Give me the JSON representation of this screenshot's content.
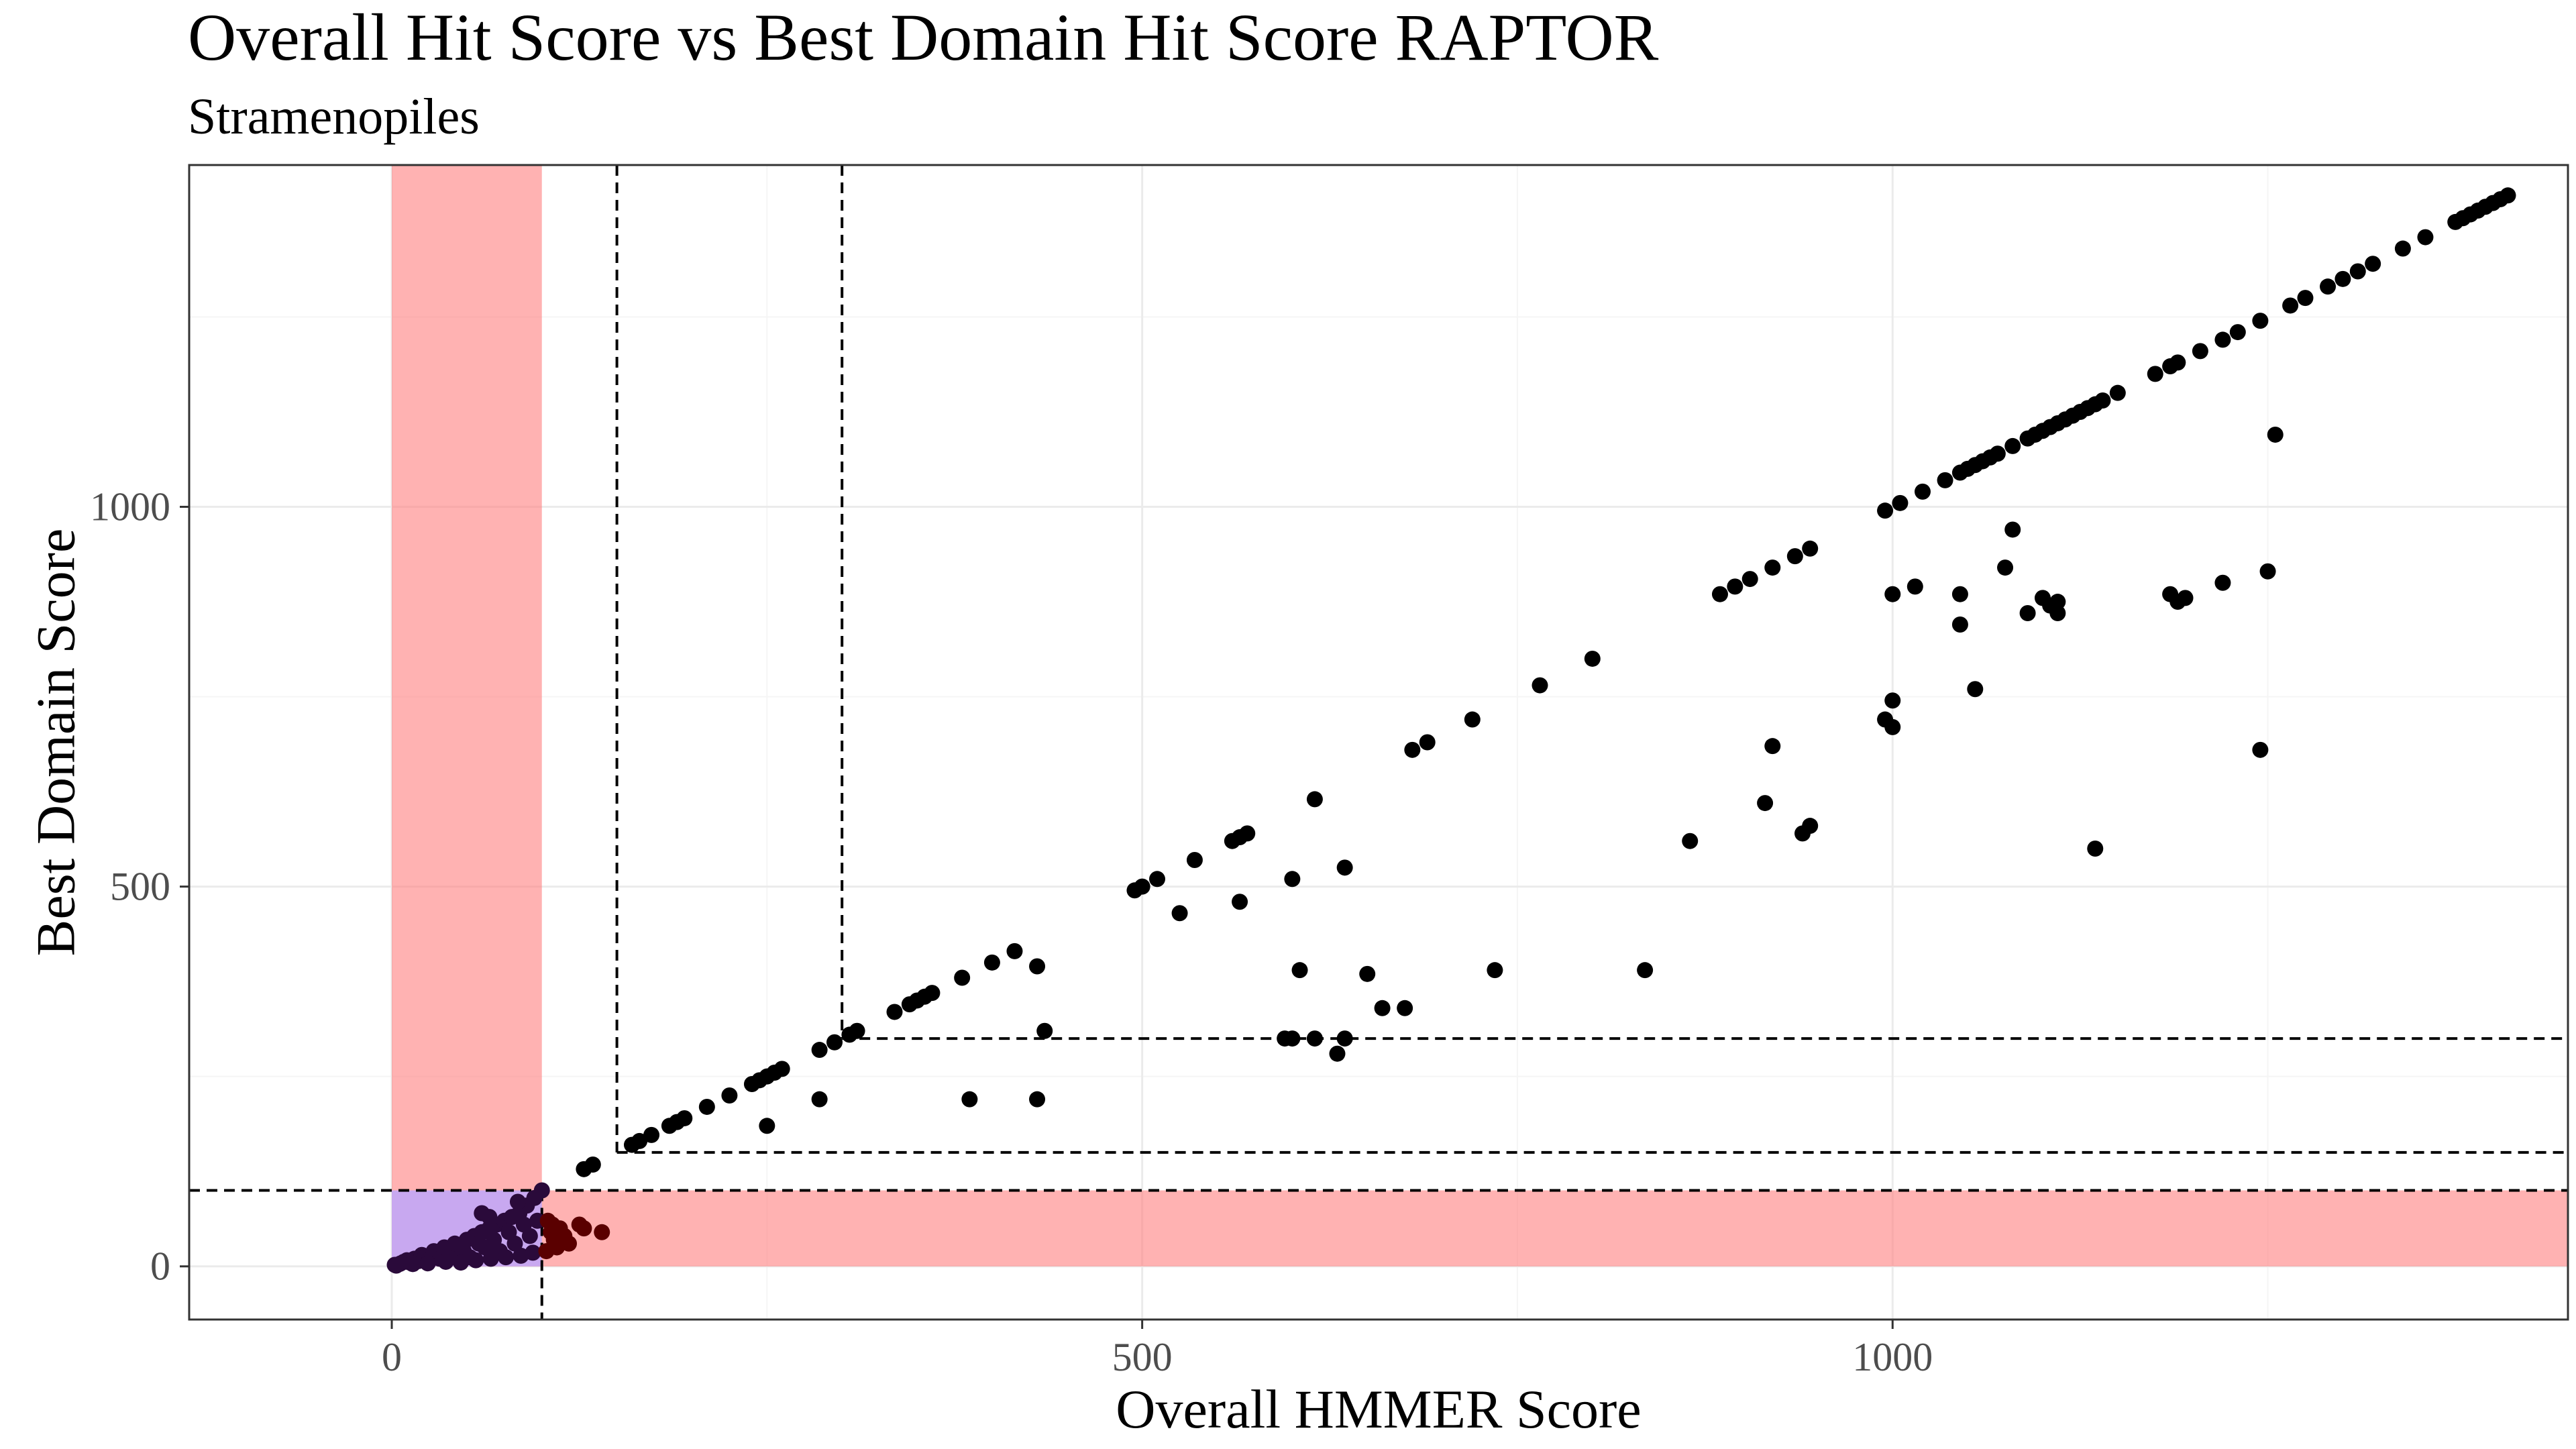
{
  "chart_data": {
    "type": "scatter",
    "title": "Overall Hit Score vs Best Domain Hit Score RAPTOR",
    "subtitle": "Stramenopiles",
    "xlabel": "Overall HMMER Score",
    "ylabel": "Best Domain Score",
    "xlim": [
      -135,
      1450
    ],
    "ylim": [
      -70,
      1450
    ],
    "x_ticks": [
      0,
      500,
      1000
    ],
    "y_ticks": [
      0,
      500,
      1000
    ],
    "grid": true,
    "colors": {
      "point": "#000000",
      "point_low": "#2a0a3a",
      "point_mid": "#5a0000",
      "shade_red": "#ff7f7f",
      "shade_purple": "#c8a8f0",
      "grid_major": "#ebebeb",
      "grid_minor": "#f5f5f5",
      "panel_border": "#333333"
    },
    "shaded_regions": [
      {
        "name": "low-overall-band",
        "x": [
          0,
          100
        ],
        "y": [
          0,
          1450
        ],
        "color": "#ff7f7f"
      },
      {
        "name": "low-domain-band",
        "x": [
          0,
          1450
        ],
        "y": [
          0,
          100
        ],
        "color": "#ff7f7f"
      },
      {
        "name": "overlap",
        "x": [
          0,
          100
        ],
        "y": [
          0,
          100
        ],
        "color": "#c8a8f0"
      }
    ],
    "threshold_lines": {
      "vertical": [
        {
          "x": 100,
          "y_from": -70,
          "y_to": 100
        },
        {
          "x": 150,
          "y_from": 150,
          "y_to": 1450
        },
        {
          "x": 300,
          "y_from": 300,
          "y_to": 1450
        }
      ],
      "horizontal": [
        {
          "y": 100,
          "x_from": -135,
          "x_to": 1450
        },
        {
          "y": 150,
          "x_from": 150,
          "x_to": 1450
        },
        {
          "y": 300,
          "x_from": 300,
          "x_to": 1450
        }
      ]
    },
    "diagonal_points_x": [
      128,
      134,
      160,
      165,
      173,
      185,
      190,
      195,
      210,
      225,
      240,
      245,
      250,
      255,
      260,
      285,
      295,
      305,
      310,
      335,
      345,
      350,
      355,
      360,
      380,
      400,
      415,
      495,
      500,
      510,
      535,
      560,
      565,
      570,
      615,
      680,
      690,
      720,
      765,
      800,
      885,
      895,
      905,
      920,
      935,
      945,
      995,
      1005,
      1020,
      1035,
      1045,
      1050,
      1055,
      1060,
      1065,
      1070,
      1080,
      1090,
      1095,
      1100,
      1105,
      1110,
      1115,
      1120,
      1125,
      1130,
      1135,
      1140,
      1150,
      1175,
      1185,
      1190,
      1205,
      1220,
      1230,
      1245,
      1265,
      1275,
      1290,
      1300,
      1310,
      1320,
      1340,
      1355,
      1375,
      1380,
      1385,
      1390,
      1395,
      1400,
      1405,
      1410
    ],
    "scatter_points": [
      [
        250,
        185
      ],
      [
        285,
        220
      ],
      [
        385,
        220
      ],
      [
        430,
        220
      ],
      [
        430,
        395
      ],
      [
        435,
        310
      ],
      [
        525,
        465
      ],
      [
        565,
        480
      ],
      [
        595,
        300
      ],
      [
        600,
        300
      ],
      [
        600,
        510
      ],
      [
        605,
        390
      ],
      [
        615,
        300
      ],
      [
        630,
        280
      ],
      [
        635,
        300
      ],
      [
        635,
        525
      ],
      [
        650,
        385
      ],
      [
        660,
        340
      ],
      [
        675,
        340
      ],
      [
        735,
        390
      ],
      [
        835,
        390
      ],
      [
        865,
        560
      ],
      [
        915,
        610
      ],
      [
        920,
        685
      ],
      [
        940,
        570
      ],
      [
        945,
        580
      ],
      [
        995,
        720
      ],
      [
        1000,
        710
      ],
      [
        1000,
        745
      ],
      [
        1000,
        885
      ],
      [
        1015,
        895
      ],
      [
        1045,
        845
      ],
      [
        1045,
        885
      ],
      [
        1055,
        760
      ],
      [
        1075,
        920
      ],
      [
        1080,
        970
      ],
      [
        1090,
        860
      ],
      [
        1100,
        880
      ],
      [
        1105,
        870
      ],
      [
        1110,
        860
      ],
      [
        1110,
        875
      ],
      [
        1135,
        550
      ],
      [
        1185,
        885
      ],
      [
        1190,
        875
      ],
      [
        1195,
        880
      ],
      [
        1220,
        900
      ],
      [
        1245,
        680
      ],
      [
        1250,
        915
      ],
      [
        1255,
        1095
      ]
    ],
    "low_cluster_dark": [
      [
        2,
        2
      ],
      [
        5,
        3
      ],
      [
        8,
        6
      ],
      [
        10,
        8
      ],
      [
        12,
        5
      ],
      [
        15,
        10
      ],
      [
        18,
        7
      ],
      [
        20,
        15
      ],
      [
        22,
        12
      ],
      [
        25,
        8
      ],
      [
        28,
        20
      ],
      [
        30,
        18
      ],
      [
        32,
        10
      ],
      [
        35,
        25
      ],
      [
        38,
        22
      ],
      [
        40,
        15
      ],
      [
        42,
        30
      ],
      [
        45,
        28
      ],
      [
        48,
        20
      ],
      [
        50,
        35
      ],
      [
        52,
        12
      ],
      [
        55,
        40
      ],
      [
        58,
        30
      ],
      [
        60,
        45
      ],
      [
        62,
        25
      ],
      [
        65,
        50
      ],
      [
        68,
        35
      ],
      [
        70,
        55
      ],
      [
        72,
        20
      ],
      [
        75,
        60
      ],
      [
        78,
        45
      ],
      [
        80,
        65
      ],
      [
        82,
        30
      ],
      [
        85,
        70
      ],
      [
        88,
        55
      ],
      [
        90,
        80
      ],
      [
        92,
        40
      ],
      [
        95,
        90
      ],
      [
        97,
        60
      ],
      [
        100,
        100
      ],
      [
        3,
        1
      ],
      [
        6,
        4
      ],
      [
        14,
        3
      ],
      [
        24,
        4
      ],
      [
        36,
        6
      ],
      [
        46,
        5
      ],
      [
        56,
        8
      ],
      [
        66,
        10
      ],
      [
        76,
        12
      ],
      [
        86,
        14
      ],
      [
        94,
        18
      ],
      [
        60,
        70
      ],
      [
        65,
        65
      ],
      [
        84,
        85
      ]
    ],
    "low_cluster_mid": [
      [
        104,
        60
      ],
      [
        106,
        45
      ],
      [
        108,
        35
      ],
      [
        110,
        25
      ],
      [
        112,
        50
      ],
      [
        115,
        40
      ],
      [
        118,
        30
      ],
      [
        125,
        55
      ],
      [
        128,
        50
      ],
      [
        140,
        45
      ],
      [
        103,
        20
      ],
      [
        107,
        55
      ]
    ]
  }
}
